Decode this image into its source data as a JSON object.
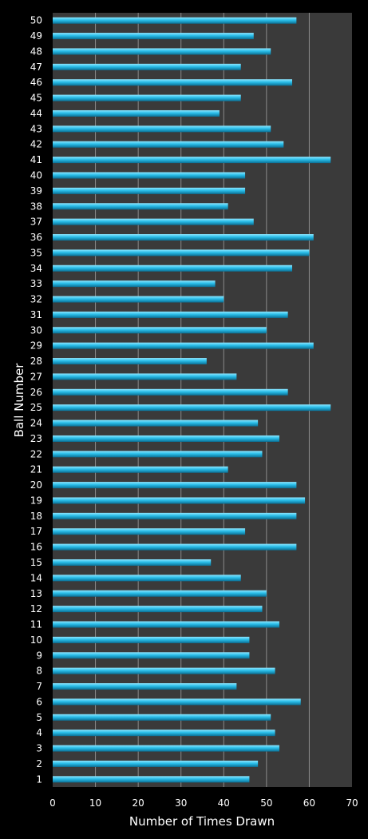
{
  "chart_data": {
    "type": "bar",
    "orientation": "horizontal",
    "xlabel": "Number of Times Drawn",
    "ylabel": "Ball Number",
    "xlim": [
      0,
      70
    ],
    "x_ticks": [
      0,
      10,
      20,
      30,
      40,
      50,
      60,
      70
    ],
    "grid": true,
    "legend": "none",
    "categories": [
      "1",
      "2",
      "3",
      "4",
      "5",
      "6",
      "7",
      "8",
      "9",
      "10",
      "11",
      "12",
      "13",
      "14",
      "15",
      "16",
      "17",
      "18",
      "19",
      "20",
      "21",
      "22",
      "23",
      "24",
      "25",
      "26",
      "27",
      "28",
      "29",
      "30",
      "31",
      "32",
      "33",
      "34",
      "35",
      "36",
      "37",
      "38",
      "39",
      "40",
      "41",
      "42",
      "43",
      "44",
      "45",
      "46",
      "47",
      "48",
      "49",
      "50"
    ],
    "values": [
      46,
      48,
      53,
      52,
      51,
      58,
      43,
      52,
      46,
      46,
      53,
      49,
      50,
      44,
      37,
      57,
      45,
      57,
      59,
      57,
      41,
      49,
      53,
      48,
      65,
      55,
      43,
      36,
      61,
      50,
      55,
      40,
      38,
      56,
      60,
      61,
      47,
      41,
      45,
      45,
      65,
      54,
      51,
      39,
      44,
      56,
      44,
      51,
      47,
      57
    ],
    "colors": {
      "background": "#000000",
      "plot_background": "#3a3a3a",
      "gridline": "#8a8a8a",
      "bar_light": "#8ee6ff",
      "bar_mid": "#29bde8",
      "bar_dark": "#0a6f94",
      "text": "#ffffff"
    }
  }
}
